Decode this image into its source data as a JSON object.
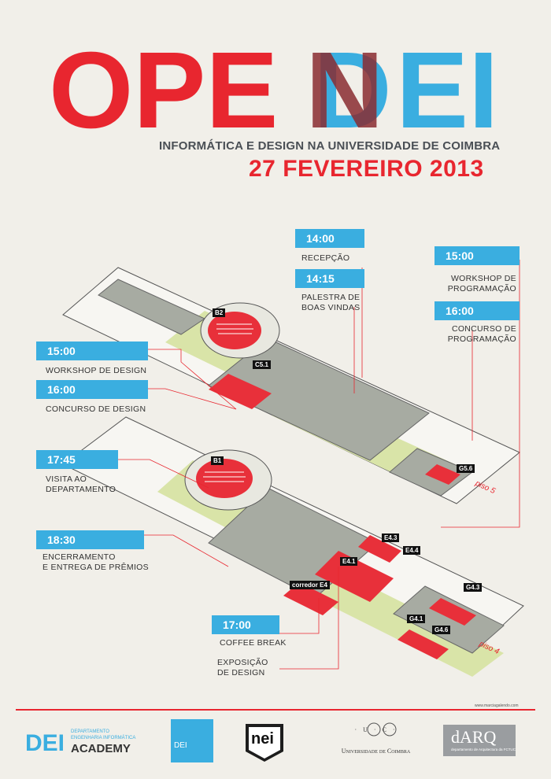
{
  "header": {
    "title_parts": [
      "OPE",
      "N",
      "D",
      "EI"
    ],
    "subtitle": "INFORMÁTICA E DESIGN NA UNIVERSIDADE DE COIMBRA",
    "date": "27 FEVEREIRO 2013"
  },
  "schedule": [
    {
      "time": "14:00",
      "label": "RECEPÇÃO"
    },
    {
      "time": "14:15",
      "label1": "PALESTRA DE",
      "label2": "BOAS VINDAS"
    },
    {
      "time": "15:00",
      "label1": "WORKSHOP DE",
      "label2": "PROGRAMAÇÃO"
    },
    {
      "time": "16:00",
      "label1": "CONCURSO DE",
      "label2": "PROGRAMAÇÃO"
    },
    {
      "time": "15:00",
      "label": "WORKSHOP DE DESIGN"
    },
    {
      "time": "16:00",
      "label": "CONCURSO DE DESIGN"
    },
    {
      "time": "17:45",
      "label1": "VISITA AO",
      "label2": "DEPARTAMENTO"
    },
    {
      "time": "18:30",
      "label1": "ENCERRAMENTO",
      "label2": "E ENTREGA DE PRÊMIOS"
    },
    {
      "time": "17:00",
      "label": "COFFEE BREAK",
      "label_b1": "EXPOSIÇÃO",
      "label_b2": "DE DESIGN"
    }
  ],
  "rooms": [
    "B2",
    "C5.1",
    "G5.6",
    "B1",
    "E4.3",
    "E4.4",
    "E4.1",
    "corredor E4",
    "G4.3",
    "G4.1",
    "G4.6"
  ],
  "floors": [
    "piso 5",
    "piso 4"
  ],
  "credit": "www.marciagalendo.com",
  "footer": {
    "dei_word": "DEI",
    "dei_small1": "DEPARTAMENTO",
    "dei_small2": "ENGENHARIA INFORMÁTICA",
    "dei_academy": "ACADEMY",
    "dei2": "DEI",
    "nei": "nei",
    "uc_letters": "· U · C ·",
    "uc_name": "Universidade de Coimbra",
    "darq": "dARQ",
    "darq_small": "departamento de Arquitectura da FCTUC"
  },
  "colors": {
    "red": "#e8262f",
    "blue": "#3aaee0",
    "dark_red": "#7a2a2c",
    "green": "#d9e4a8",
    "grey": "#a7aba2"
  }
}
